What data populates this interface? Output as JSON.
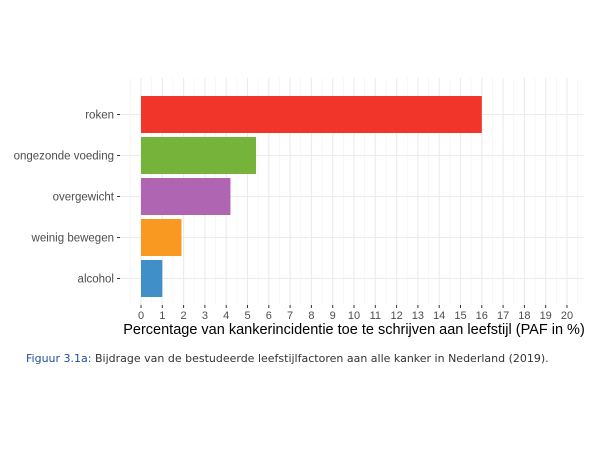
{
  "chart_data": {
    "type": "bar",
    "orientation": "horizontal",
    "categories": [
      "roken",
      "ongezonde voeding",
      "overgewicht",
      "weinig bewegen",
      "alcohol"
    ],
    "values": [
      16.0,
      5.4,
      4.2,
      1.9,
      1.0
    ],
    "colors": [
      "#f1352b",
      "#76b33a",
      "#b065b2",
      "#f99921",
      "#418fc9"
    ],
    "xlabel": "Percentage van kankerincidentie toe te schrijven aan leefstijl (PAF in %)",
    "ylabel": "",
    "title": "",
    "xlim": [
      0,
      20
    ],
    "xticks": [
      0,
      1,
      2,
      3,
      4,
      5,
      6,
      7,
      8,
      9,
      10,
      11,
      12,
      13,
      14,
      15,
      16,
      17,
      18,
      19,
      20
    ],
    "grid": true,
    "legend": "none"
  },
  "caption": {
    "figure_number": "Figuur 3.1a:",
    "text": " Bijdrage van de bestudeerde leefstijlfactoren aan alle kanker in Nederland (2019)."
  }
}
